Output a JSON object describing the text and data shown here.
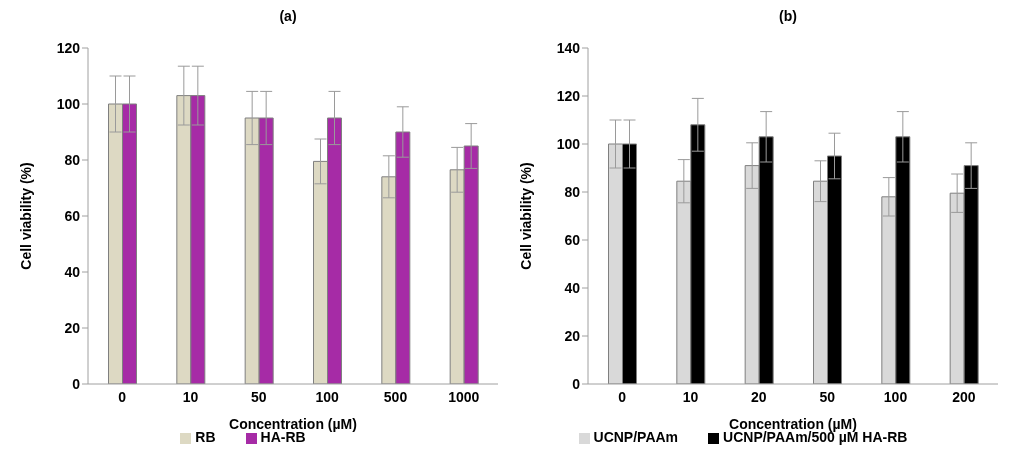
{
  "chart_data": [
    {
      "type": "bar",
      "title": "(a)",
      "xlabel": "Concentration (µM)",
      "ylabel": "Cell viability (%)",
      "categories": [
        "0",
        "10",
        "50",
        "100",
        "500",
        "1000"
      ],
      "series": [
        {
          "name": "RB",
          "color": "#ddd9c3",
          "values": [
            100,
            103,
            95,
            79.5,
            74,
            76.5
          ],
          "errors": [
            10,
            10.5,
            9.5,
            8,
            7.5,
            8
          ]
        },
        {
          "name": "HA-RB",
          "color": "#a62ba6",
          "values": [
            100,
            103,
            95,
            95,
            90,
            85
          ],
          "errors": [
            10,
            10.5,
            9.5,
            9.5,
            9,
            8
          ]
        }
      ],
      "ylim": [
        0,
        120
      ],
      "yticks": [
        0,
        20,
        40,
        60,
        80,
        100,
        120
      ],
      "grid": false,
      "legend": "bottom"
    },
    {
      "type": "bar",
      "title": "(b)",
      "xlabel": "Concentration (µM)",
      "ylabel": "Cell viability (%)",
      "categories": [
        "0",
        "10",
        "20",
        "50",
        "100",
        "200"
      ],
      "series": [
        {
          "name": "UCNP/PAAm",
          "color": "#d9d9d9",
          "values": [
            100,
            84.5,
            91,
            84.5,
            78,
            79.5
          ],
          "errors": [
            10,
            9,
            9.5,
            8.5,
            8,
            8
          ]
        },
        {
          "name": "UCNP/PAAm/500 µM HA-RB",
          "color": "#000000",
          "values": [
            100,
            108,
            103,
            95,
            103,
            91
          ],
          "errors": [
            10,
            11,
            10.5,
            9.5,
            10.5,
            9.5
          ]
        }
      ],
      "ylim": [
        0,
        140
      ],
      "yticks": [
        0,
        20,
        40,
        60,
        80,
        100,
        120,
        140
      ],
      "grid": false,
      "legend": "bottom"
    }
  ]
}
